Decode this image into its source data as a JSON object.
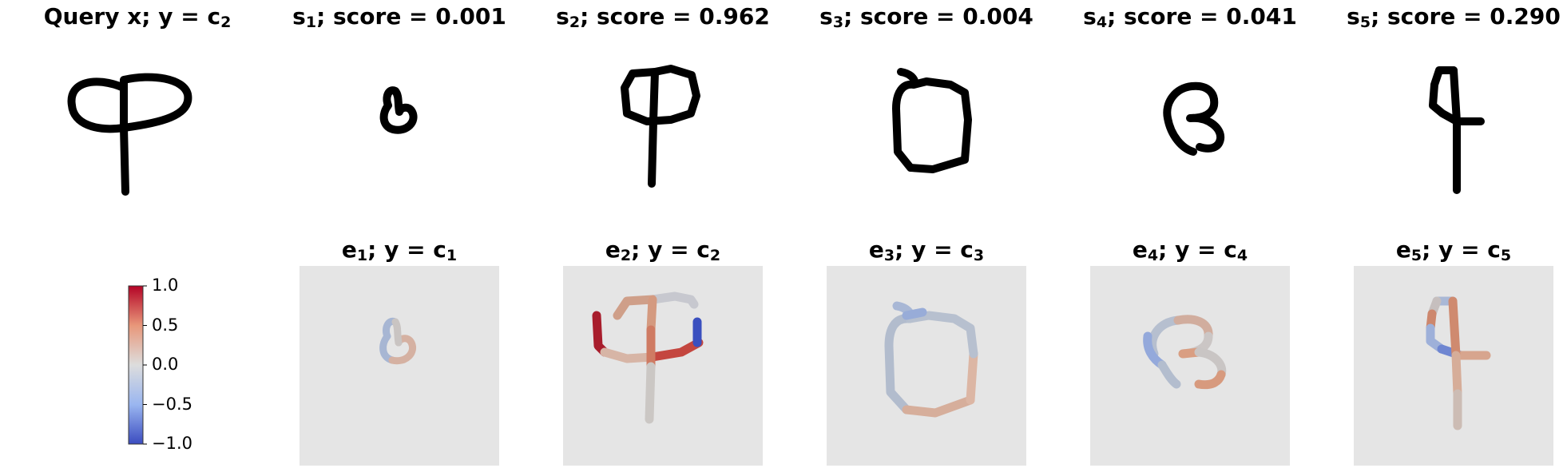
{
  "top_row": [
    {
      "title_main": "Query x; y = c",
      "title_sub": "2"
    },
    {
      "title_prefix": "s",
      "title_idx": "1",
      "title_rest": "; score = 0.001"
    },
    {
      "title_prefix": "s",
      "title_idx": "2",
      "title_rest": "; score = 0.962"
    },
    {
      "title_prefix": "s",
      "title_idx": "3",
      "title_rest": "; score = 0.004"
    },
    {
      "title_prefix": "s",
      "title_idx": "4",
      "title_rest": "; score = 0.041"
    },
    {
      "title_prefix": "s",
      "title_idx": "5",
      "title_rest": "; score = 0.290"
    }
  ],
  "bottom_row": [
    {
      "e": "e",
      "e_idx": "1",
      "mid": "; y = c",
      "c_idx": "1"
    },
    {
      "e": "e",
      "e_idx": "2",
      "mid": "; y = c",
      "c_idx": "2"
    },
    {
      "e": "e",
      "e_idx": "3",
      "mid": "; y = c",
      "c_idx": "3"
    },
    {
      "e": "e",
      "e_idx": "4",
      "mid": "; y = c",
      "c_idx": "4"
    },
    {
      "e": "e",
      "e_idx": "5",
      "mid": "; y = c",
      "c_idx": "5"
    }
  ],
  "colorbar": {
    "ticks": [
      "1.0",
      "0.5",
      "0.0",
      "−0.5",
      "−1.0"
    ],
    "colormap": "coolwarm",
    "top_color": "#b40426",
    "mid_color": "#dddddd",
    "bottom_color": "#3b4cc0"
  },
  "colors": {
    "stroke": "#000000",
    "panel_bg": "#e5e5e5",
    "neutral_stroke": "#c6cdd8",
    "strong_red": "#a81d2c",
    "strong_blue": "#3a4fbf",
    "light_red": "#d9a890",
    "light_blue": "#a4b5d6"
  }
}
